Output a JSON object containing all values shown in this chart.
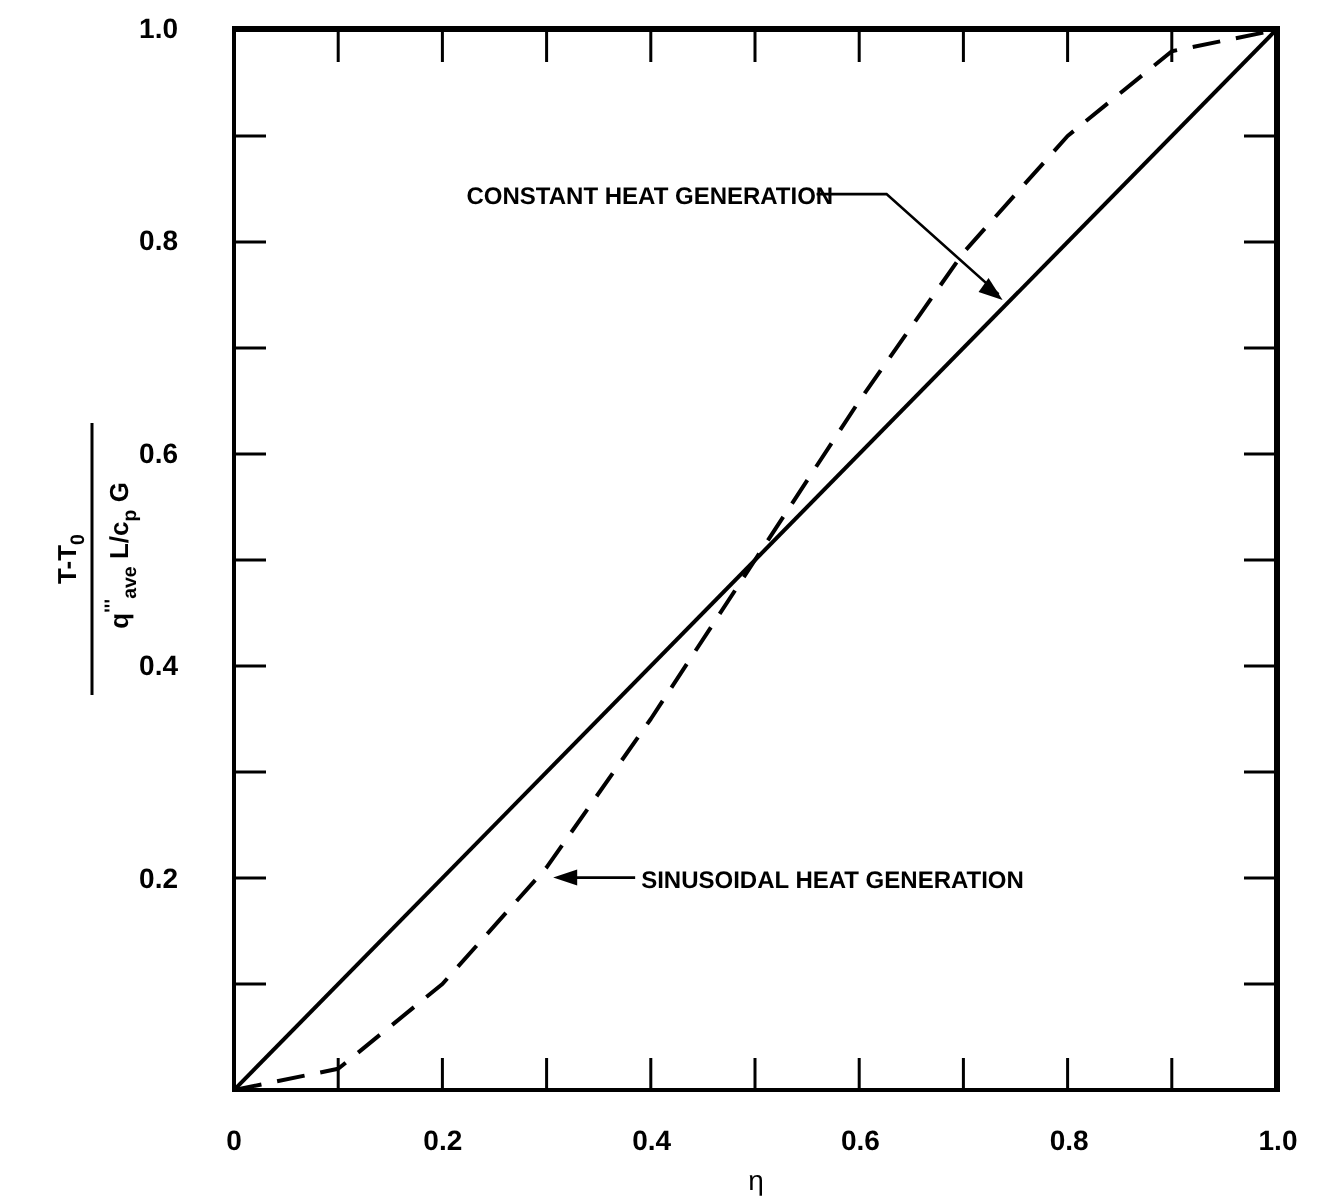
{
  "chart_data": {
    "type": "line",
    "xlabel": "η",
    "ylabel": "T-T$_{0}$ q$^{'''}$$_{ave}$ L/c$_{p}$ G",
    "x": [
      0,
      0.1,
      0.2,
      0.3,
      0.4,
      0.5,
      0.6,
      0.7,
      0.8,
      0.9,
      1.0
    ],
    "series": [
      {
        "color": "#000000",
        "line_style": "solid",
        "x": [
          0,
          1
        ],
        "values": [
          0,
          1
        ]
      },
      {
        "color": "#000000",
        "line_style": "dashed",
        "values": [
          0,
          0.02,
          0.1,
          0.21,
          0.35,
          0.5,
          0.65,
          0.79,
          0.9,
          0.98,
          1
        ]
      }
    ],
    "xlim": [
      0,
      1
    ],
    "ylim": [
      0,
      1
    ],
    "xticks": [
      0,
      {
        "value": 0.1,
        "label": null
      },
      0.2,
      {
        "value": 0.3,
        "label": null
      },
      0.4,
      {
        "value": 0.5,
        "label": null
      },
      0.6,
      {
        "value": 0.7,
        "label": null
      },
      0.8,
      {
        "value": 0.9,
        "label": null
      },
      {
        "value": 1,
        "label": "1.0"
      }
    ],
    "yticks": [
      {
        "value": 0,
        "label": null
      },
      {
        "value": 0.1,
        "label": null
      },
      0.2,
      {
        "value": 0.3,
        "label": null
      },
      0.4,
      {
        "value": 0.5,
        "label": null
      },
      0.6,
      {
        "value": 0.7,
        "label": null
      },
      0.8,
      {
        "value": 0.9,
        "label": null
      },
      {
        "value": 1,
        "label": "1.0"
      }
    ],
    "annotations": [
      {
        "text": "CONSTANT HEAT GENERATION",
        "x": 0.74,
        "y": 0.74
      },
      "SINUSOIDAL HEAT GENERATION"
    ],
    "marker": "none"
  }
}
